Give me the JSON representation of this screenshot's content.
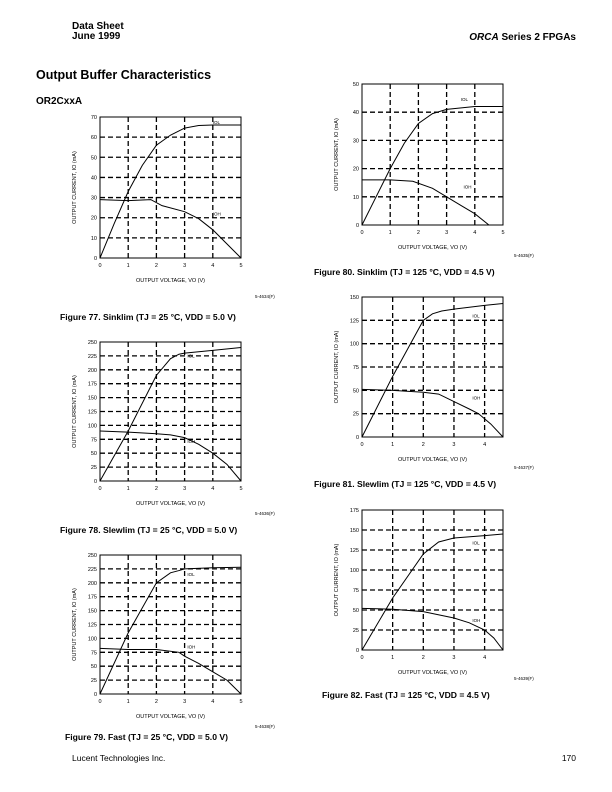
{
  "header": {
    "left_line1": "Data Sheet",
    "left_line2": "June 1999",
    "right_italic": "ORCA",
    "right_rest": " Series 2 FPGAs"
  },
  "section_title": "Output Buffer Characteristics",
  "subsection_title": "OR2CxxA",
  "footer": {
    "company": "Lucent Technologies Inc.",
    "page_number": "170"
  },
  "chart_data": [
    {
      "type": "line",
      "id": "fig77",
      "caption": "Figure 77. Sinklim (TJ = 25 °C, VDD = 5.0 V)",
      "figure_code": "5-4634(F)",
      "xlabel": "OUTPUT VOLTAGE, VO (V)",
      "ylabel": "OUTPUT CURRENT, IO (mA)",
      "xlim": [
        0,
        5
      ],
      "ylim": [
        0,
        70
      ],
      "xticks": [
        0,
        1,
        2,
        3,
        4,
        5
      ],
      "yticks": [
        0,
        10,
        20,
        30,
        40,
        50,
        60,
        70
      ],
      "grid": "dashed",
      "series": [
        {
          "name": "IOL",
          "x": [
            0,
            0.5,
            1,
            1.5,
            2,
            2.5,
            3,
            3.5,
            4,
            5
          ],
          "y": [
            0,
            17,
            33,
            46,
            56,
            61,
            64.5,
            65.8,
            66,
            66
          ]
        },
        {
          "name": "IOH",
          "x": [
            0,
            1,
            1.8,
            2.2,
            3,
            3.5,
            4,
            4.5,
            5
          ],
          "y": [
            29,
            28.5,
            29,
            26,
            23,
            19.5,
            14,
            7,
            0
          ]
        }
      ]
    },
    {
      "type": "line",
      "id": "fig78",
      "caption": "Figure 78. Slewlim (TJ = 25 °C, VDD = 5.0 V)",
      "figure_code": "5-4636(F)",
      "xlabel": "OUTPUT VOLTAGE, VO (V)",
      "ylabel": "OUTPUT CURRENT, IO (mA)",
      "xlim": [
        0,
        5
      ],
      "ylim": [
        0,
        250
      ],
      "xticks": [
        0,
        1,
        2,
        3,
        4,
        5
      ],
      "yticks": [
        0,
        25,
        50,
        75,
        100,
        125,
        150,
        175,
        200,
        225,
        250
      ],
      "grid": "dashed",
      "series": [
        {
          "name": "IOL",
          "x": [
            0,
            1,
            2,
            2.5,
            2.8,
            3,
            4,
            5
          ],
          "y": [
            0,
            90,
            190,
            220,
            228,
            230,
            235,
            240
          ]
        },
        {
          "name": "IOH",
          "x": [
            0,
            1,
            2,
            2.5,
            3,
            3.5,
            4,
            4.5,
            5
          ],
          "y": [
            90,
            88,
            85,
            83,
            78,
            66,
            50,
            30,
            0
          ]
        }
      ]
    },
    {
      "type": "line",
      "id": "fig79",
      "caption": "Figure 79. Fast (TJ = 25 °C, VDD = 5.0 V)",
      "figure_code": "5-4638(F)",
      "xlabel": "OUTPUT VOLTAGE, VO (V)",
      "ylabel": "OUTPUT CURRENT, IO (mA)",
      "xlim": [
        0,
        5
      ],
      "ylim": [
        0,
        250
      ],
      "xticks": [
        0,
        1,
        2,
        3,
        4,
        5
      ],
      "yticks": [
        0,
        25,
        50,
        75,
        100,
        125,
        150,
        175,
        200,
        225,
        250
      ],
      "grid": "dashed",
      "series": [
        {
          "name": "IOL",
          "x": [
            0,
            1,
            2,
            2.5,
            2.8,
            3,
            4,
            5
          ],
          "y": [
            0,
            110,
            200,
            218,
            222,
            225,
            227,
            228
          ]
        },
        {
          "name": "IOH",
          "x": [
            0,
            1,
            2,
            2.8,
            3,
            3.5,
            4,
            4.5,
            5
          ],
          "y": [
            82,
            80,
            80,
            75,
            68,
            55,
            40,
            25,
            0
          ]
        }
      ]
    },
    {
      "type": "line",
      "id": "fig80",
      "caption": "Figure 80. Sinklim (TJ = 125 °C, VDD = 4.5 V)",
      "figure_code": "5-4635(F)",
      "xlabel": "OUTPUT VOLTAGE, VO (V)",
      "ylabel": "OUTPUT CURRENT, IO (mA)",
      "xlim": [
        0,
        5
      ],
      "ylim": [
        0,
        50
      ],
      "xticks": [
        0,
        1,
        2,
        3,
        4,
        5
      ],
      "yticks": [
        0,
        10,
        20,
        30,
        40,
        50
      ],
      "grid": "dashed",
      "series": [
        {
          "name": "IOL",
          "x": [
            0,
            0.5,
            1,
            1.5,
            2,
            2.5,
            3,
            4,
            5
          ],
          "y": [
            0,
            10,
            20,
            29,
            36,
            39.5,
            41,
            42,
            42
          ]
        },
        {
          "name": "IOH",
          "x": [
            0,
            1,
            1.8,
            2.5,
            3,
            3.5,
            4,
            4.5
          ],
          "y": [
            16,
            16,
            15.5,
            13,
            10,
            7,
            4,
            0
          ]
        }
      ]
    },
    {
      "type": "line",
      "id": "fig81",
      "caption": "Figure 81. Slewlim (TJ = 125 °C, VDD = 4.5 V)",
      "figure_code": "5-4637(F)",
      "xlabel": "OUTPUT VOLTAGE, VO (V)",
      "ylabel": "OUTPUT CURRENT, IO (mA)",
      "xlim": [
        0,
        4.6
      ],
      "ylim": [
        0,
        150
      ],
      "xticks": [
        0,
        1,
        2,
        3,
        4
      ],
      "yticks": [
        0,
        25,
        50,
        75,
        100,
        125,
        150
      ],
      "grid": "dashed",
      "series": [
        {
          "name": "IOL",
          "x": [
            0,
            1,
            2,
            2.3,
            2.6,
            3,
            4,
            4.6
          ],
          "y": [
            0,
            65,
            125,
            132,
            135,
            137,
            141,
            143
          ]
        },
        {
          "name": "IOH",
          "x": [
            0,
            1,
            2,
            2.5,
            3,
            3.5,
            3.8,
            4.2,
            4.6
          ],
          "y": [
            51,
            50,
            48,
            46,
            38,
            30,
            25,
            14,
            0
          ]
        }
      ]
    },
    {
      "type": "line",
      "id": "fig82",
      "caption": "Figure 82. Fast (TJ = 125 °C, VDD = 4.5 V)",
      "figure_code": "5-4639(F)",
      "xlabel": "OUTPUT VOLTAGE, VO (V)",
      "ylabel": "OUTPUT CURRENT, IO (mA)",
      "xlim": [
        0,
        4.6
      ],
      "ylim": [
        0,
        175
      ],
      "xticks": [
        0,
        1,
        2,
        3,
        4
      ],
      "yticks": [
        0,
        25,
        50,
        75,
        100,
        125,
        150,
        175
      ],
      "grid": "dashed",
      "series": [
        {
          "name": "IOL",
          "x": [
            0,
            1,
            2,
            2.5,
            3,
            4,
            4.6
          ],
          "y": [
            0,
            65,
            120,
            135,
            140,
            143,
            145
          ]
        },
        {
          "name": "IOH",
          "x": [
            0,
            1,
            2,
            3,
            3.5,
            4,
            4.3,
            4.6
          ],
          "y": [
            52,
            51,
            48,
            40,
            34,
            25,
            15,
            0
          ]
        }
      ]
    }
  ]
}
